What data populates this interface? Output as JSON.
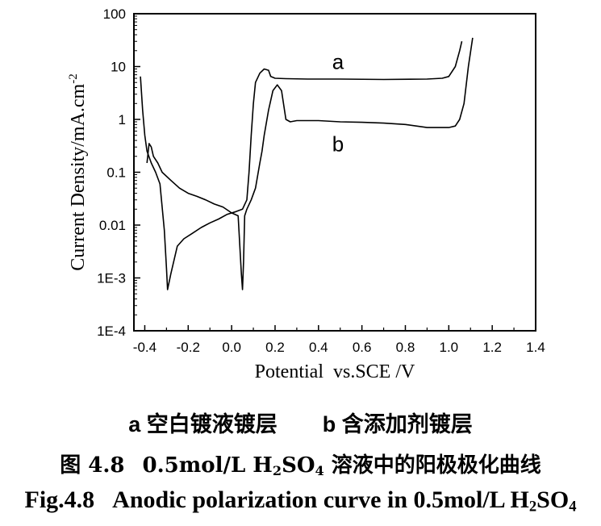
{
  "chart_data": {
    "type": "line",
    "xlabel": "Potential  vs.SCE /V",
    "ylabel": "Current Density/mA.cm",
    "ylabel_sup": "-2",
    "xlim": [
      -0.45,
      1.4
    ],
    "ylim": [
      0.0001,
      100
    ],
    "yscale": "log",
    "xticks": [
      -0.4,
      -0.2,
      0.0,
      0.2,
      0.4,
      0.6,
      0.8,
      1.0,
      1.2,
      1.4
    ],
    "xtick_labels": [
      "-0.4",
      "-0.2",
      "0.0",
      "0.2",
      "0.4",
      "0.6",
      "0.8",
      "1.0",
      "1.2",
      "1.4"
    ],
    "yticks": [
      0.0001,
      0.001,
      0.01,
      0.1,
      1,
      10,
      100
    ],
    "ytick_labels": [
      "1E-4",
      "1E-3",
      "0.01",
      "0.1",
      "1",
      "10",
      "100"
    ],
    "grid": false,
    "series": [
      {
        "name": "a",
        "x": [
          -0.42,
          -0.41,
          -0.4,
          -0.39,
          -0.37,
          -0.35,
          -0.33,
          -0.31,
          -0.3,
          -0.295,
          -0.28,
          -0.25,
          -0.22,
          -0.18,
          -0.14,
          -0.1,
          -0.06,
          -0.02,
          0.02,
          0.05,
          0.07,
          0.08,
          0.09,
          0.1,
          0.11,
          0.13,
          0.15,
          0.17,
          0.18,
          0.2,
          0.25,
          0.35,
          0.5,
          0.7,
          0.9,
          0.97,
          1.0,
          1.03,
          1.05,
          1.06
        ],
        "y": [
          6.5,
          1.5,
          0.5,
          0.25,
          0.15,
          0.1,
          0.06,
          0.008,
          0.0015,
          0.0006,
          0.0012,
          0.004,
          0.0055,
          0.007,
          0.009,
          0.011,
          0.013,
          0.016,
          0.018,
          0.02,
          0.03,
          0.1,
          0.5,
          2,
          5,
          7.5,
          9,
          8.5,
          6.5,
          6,
          5.9,
          5.8,
          5.8,
          5.7,
          5.8,
          6.0,
          6.5,
          10,
          20,
          30
        ]
      },
      {
        "name": "b",
        "x": [
          -0.39,
          -0.38,
          -0.37,
          -0.36,
          -0.34,
          -0.32,
          -0.28,
          -0.24,
          -0.2,
          -0.16,
          -0.12,
          -0.08,
          -0.04,
          0.0,
          0.03,
          0.045,
          0.05,
          0.055,
          0.06,
          0.07,
          0.09,
          0.11,
          0.13,
          0.14,
          0.15,
          0.17,
          0.19,
          0.21,
          0.23,
          0.25,
          0.27,
          0.3,
          0.4,
          0.5,
          0.6,
          0.7,
          0.8,
          0.9,
          1.0,
          1.03,
          1.05,
          1.07,
          1.09,
          1.11
        ],
        "y": [
          0.15,
          0.35,
          0.3,
          0.2,
          0.15,
          0.1,
          0.07,
          0.05,
          0.04,
          0.035,
          0.03,
          0.025,
          0.022,
          0.017,
          0.015,
          0.0012,
          0.0006,
          0.002,
          0.015,
          0.02,
          0.03,
          0.05,
          0.15,
          0.25,
          0.5,
          1.5,
          3.5,
          4.5,
          3.5,
          1.0,
          0.9,
          0.95,
          0.95,
          0.9,
          0.88,
          0.85,
          0.8,
          0.7,
          0.7,
          0.75,
          1.0,
          2.0,
          10,
          35
        ]
      }
    ],
    "annotations": [
      {
        "text": "a",
        "x": 0.49,
        "y": 9
      },
      {
        "text": "b",
        "x": 0.49,
        "y": 0.25
      }
    ]
  },
  "caption": {
    "legend_a": "a 空白镀液镀层",
    "legend_b": "b 含添加剂镀层",
    "cn_label": "图 4.8",
    "cn_pre": "0.5mol/L H",
    "cn_sub1": "2",
    "cn_mid": "SO",
    "cn_sub2": "4",
    "cn_post": " 溶液中的阳极极化曲线",
    "en_label": "Fig.4.8",
    "en_pre": "Anodic polarization curve in 0.5mol/L H",
    "en_sub1": "2",
    "en_mid": "SO",
    "en_sub2": "4"
  }
}
